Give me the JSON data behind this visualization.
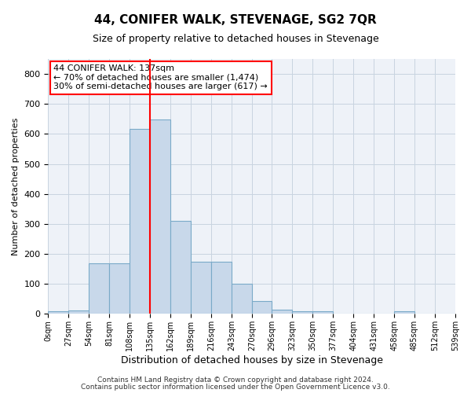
{
  "title": "44, CONIFER WALK, STEVENAGE, SG2 7QR",
  "subtitle": "Size of property relative to detached houses in Stevenage",
  "xlabel": "Distribution of detached houses by size in Stevenage",
  "ylabel": "Number of detached properties",
  "bar_color": "#c8d8ea",
  "bar_edge_color": "#7aaac8",
  "grid_color": "#c8d4e0",
  "vline_x": 135,
  "vline_color": "red",
  "annotation_text": "44 CONIFER WALK: 137sqm\n← 70% of detached houses are smaller (1,474)\n30% of semi-detached houses are larger (617) →",
  "annotation_box_color": "white",
  "annotation_box_edge_color": "red",
  "footer_line1": "Contains HM Land Registry data © Crown copyright and database right 2024.",
  "footer_line2": "Contains public sector information licensed under the Open Government Licence v3.0.",
  "bin_edges": [
    0,
    27,
    54,
    81,
    108,
    135,
    162,
    189,
    216,
    243,
    270,
    296,
    323,
    350,
    377,
    404,
    431,
    458,
    485,
    512,
    539
  ],
  "bar_heights": [
    8,
    12,
    170,
    170,
    616,
    648,
    310,
    175,
    175,
    100,
    42,
    14,
    10,
    10,
    0,
    0,
    0,
    8,
    0,
    0
  ],
  "ylim": [
    0,
    850
  ],
  "yticks": [
    0,
    100,
    200,
    300,
    400,
    500,
    600,
    700,
    800
  ],
  "tick_labels": [
    "0sqm",
    "27sqm",
    "54sqm",
    "81sqm",
    "108sqm",
    "135sqm",
    "162sqm",
    "189sqm",
    "216sqm",
    "243sqm",
    "270sqm",
    "296sqm",
    "323sqm",
    "350sqm",
    "377sqm",
    "404sqm",
    "431sqm",
    "458sqm",
    "485sqm",
    "512sqm",
    "539sqm"
  ],
  "bg_color": "#ffffff",
  "plot_bg_color": "#eef2f8"
}
